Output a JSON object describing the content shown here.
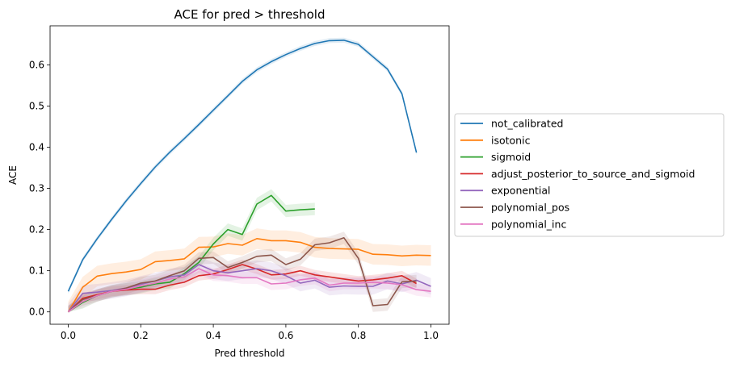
{
  "chart_data": {
    "type": "line",
    "title": "ACE for pred > threshold",
    "xlabel": "Pred threshold",
    "ylabel": "ACE",
    "xlim": [
      -0.05,
      1.05
    ],
    "ylim": [
      -0.03,
      0.695
    ],
    "xticks": [
      0.0,
      0.2,
      0.4,
      0.6,
      0.8,
      1.0
    ],
    "xtick_labels": [
      "0.0",
      "0.2",
      "0.4",
      "0.6",
      "0.8",
      "1.0"
    ],
    "yticks": [
      0.0,
      0.1,
      0.2,
      0.3,
      0.4,
      0.5,
      0.6
    ],
    "ytick_labels": [
      "0.0",
      "0.1",
      "0.2",
      "0.3",
      "0.4",
      "0.5",
      "0.6"
    ],
    "grid": false,
    "legend_position": "outside-right",
    "series": [
      {
        "name": "not_calibrated",
        "color": "#1f77b4",
        "band": 0.006,
        "x": [
          0.0,
          0.04,
          0.08,
          0.12,
          0.16,
          0.2,
          0.24,
          0.28,
          0.32,
          0.36,
          0.4,
          0.44,
          0.48,
          0.52,
          0.56,
          0.6,
          0.64,
          0.68,
          0.72,
          0.76,
          0.8,
          0.84,
          0.88,
          0.92,
          0.96
        ],
        "y": [
          0.05,
          0.127,
          0.178,
          0.225,
          0.27,
          0.312,
          0.352,
          0.388,
          0.421,
          0.455,
          0.49,
          0.525,
          0.56,
          0.588,
          0.608,
          0.625,
          0.64,
          0.652,
          0.659,
          0.66,
          0.65,
          0.62,
          0.59,
          0.53,
          0.387
        ]
      },
      {
        "name": "isotonic",
        "color": "#ff7f0e",
        "band": 0.025,
        "x": [
          0.0,
          0.04,
          0.08,
          0.12,
          0.16,
          0.2,
          0.24,
          0.28,
          0.32,
          0.36,
          0.4,
          0.44,
          0.48,
          0.52,
          0.56,
          0.6,
          0.64,
          0.68,
          0.72,
          0.76,
          0.8,
          0.84,
          0.88,
          0.92,
          0.96,
          1.0
        ],
        "y": [
          0.0,
          0.06,
          0.087,
          0.093,
          0.097,
          0.103,
          0.122,
          0.125,
          0.129,
          0.157,
          0.158,
          0.166,
          0.162,
          0.178,
          0.173,
          0.173,
          0.169,
          0.157,
          0.154,
          0.153,
          0.152,
          0.14,
          0.139,
          0.136,
          0.138,
          0.137
        ]
      },
      {
        "name": "sigmoid",
        "color": "#2ca02c",
        "band": 0.015,
        "x": [
          0.0,
          0.04,
          0.08,
          0.12,
          0.16,
          0.2,
          0.24,
          0.28,
          0.32,
          0.36,
          0.4,
          0.44,
          0.48,
          0.52,
          0.56,
          0.6,
          0.64,
          0.68
        ],
        "y": [
          0.0,
          0.023,
          0.04,
          0.05,
          0.055,
          0.06,
          0.068,
          0.072,
          0.093,
          0.12,
          0.165,
          0.2,
          0.188,
          0.262,
          0.283,
          0.245,
          0.248,
          0.25
        ]
      },
      {
        "name": "adjust_posterior_to_source_and_sigmoid",
        "color": "#d62728",
        "band": 0.012,
        "x": [
          0.0,
          0.04,
          0.08,
          0.12,
          0.16,
          0.2,
          0.24,
          0.28,
          0.32,
          0.36,
          0.4,
          0.44,
          0.48,
          0.52,
          0.56,
          0.6,
          0.64,
          0.68,
          0.72,
          0.76,
          0.8,
          0.84,
          0.88,
          0.92,
          0.96
        ],
        "y": [
          0.0,
          0.033,
          0.042,
          0.05,
          0.053,
          0.055,
          0.055,
          0.065,
          0.072,
          0.088,
          0.092,
          0.103,
          0.115,
          0.104,
          0.09,
          0.092,
          0.1,
          0.09,
          0.085,
          0.08,
          0.075,
          0.078,
          0.082,
          0.088,
          0.069
        ]
      },
      {
        "name": "exponential",
        "color": "#9467bd",
        "band": 0.02,
        "x": [
          0.0,
          0.04,
          0.08,
          0.12,
          0.16,
          0.2,
          0.24,
          0.28,
          0.32,
          0.36,
          0.4,
          0.44,
          0.48,
          0.52,
          0.56,
          0.6,
          0.64,
          0.68,
          0.72,
          0.76,
          0.8,
          0.84,
          0.88,
          0.92,
          0.96,
          1.0
        ],
        "y": [
          0.0,
          0.045,
          0.048,
          0.052,
          0.058,
          0.067,
          0.075,
          0.085,
          0.09,
          0.115,
          0.1,
          0.095,
          0.1,
          0.105,
          0.1,
          0.088,
          0.07,
          0.077,
          0.06,
          0.063,
          0.062,
          0.062,
          0.075,
          0.068,
          0.077,
          0.062
        ]
      },
      {
        "name": "polynomial_pos",
        "color": "#8c564b",
        "band": 0.015,
        "x": [
          0.0,
          0.04,
          0.08,
          0.12,
          0.16,
          0.2,
          0.24,
          0.28,
          0.32,
          0.36,
          0.4,
          0.44,
          0.48,
          0.52,
          0.56,
          0.6,
          0.64,
          0.68,
          0.72,
          0.76,
          0.8,
          0.84,
          0.88,
          0.92,
          0.96
        ],
        "y": [
          0.0,
          0.03,
          0.04,
          0.05,
          0.058,
          0.07,
          0.075,
          0.088,
          0.1,
          0.13,
          0.132,
          0.108,
          0.12,
          0.135,
          0.138,
          0.115,
          0.128,
          0.163,
          0.168,
          0.18,
          0.13,
          0.015,
          0.018,
          0.073,
          0.075
        ]
      },
      {
        "name": "polynomial_inc",
        "color": "#e377c2",
        "band": 0.015,
        "x": [
          0.0,
          0.04,
          0.08,
          0.12,
          0.16,
          0.2,
          0.24,
          0.28,
          0.32,
          0.36,
          0.4,
          0.44,
          0.48,
          0.52,
          0.56,
          0.6,
          0.64,
          0.68,
          0.72,
          0.76,
          0.8,
          0.84,
          0.88,
          0.92,
          0.96,
          1.0
        ],
        "y": [
          0.0,
          0.025,
          0.04,
          0.05,
          0.055,
          0.063,
          0.07,
          0.08,
          0.085,
          0.105,
          0.09,
          0.088,
          0.083,
          0.083,
          0.068,
          0.07,
          0.078,
          0.082,
          0.065,
          0.07,
          0.07,
          0.072,
          0.07,
          0.066,
          0.054,
          0.05
        ]
      }
    ]
  }
}
